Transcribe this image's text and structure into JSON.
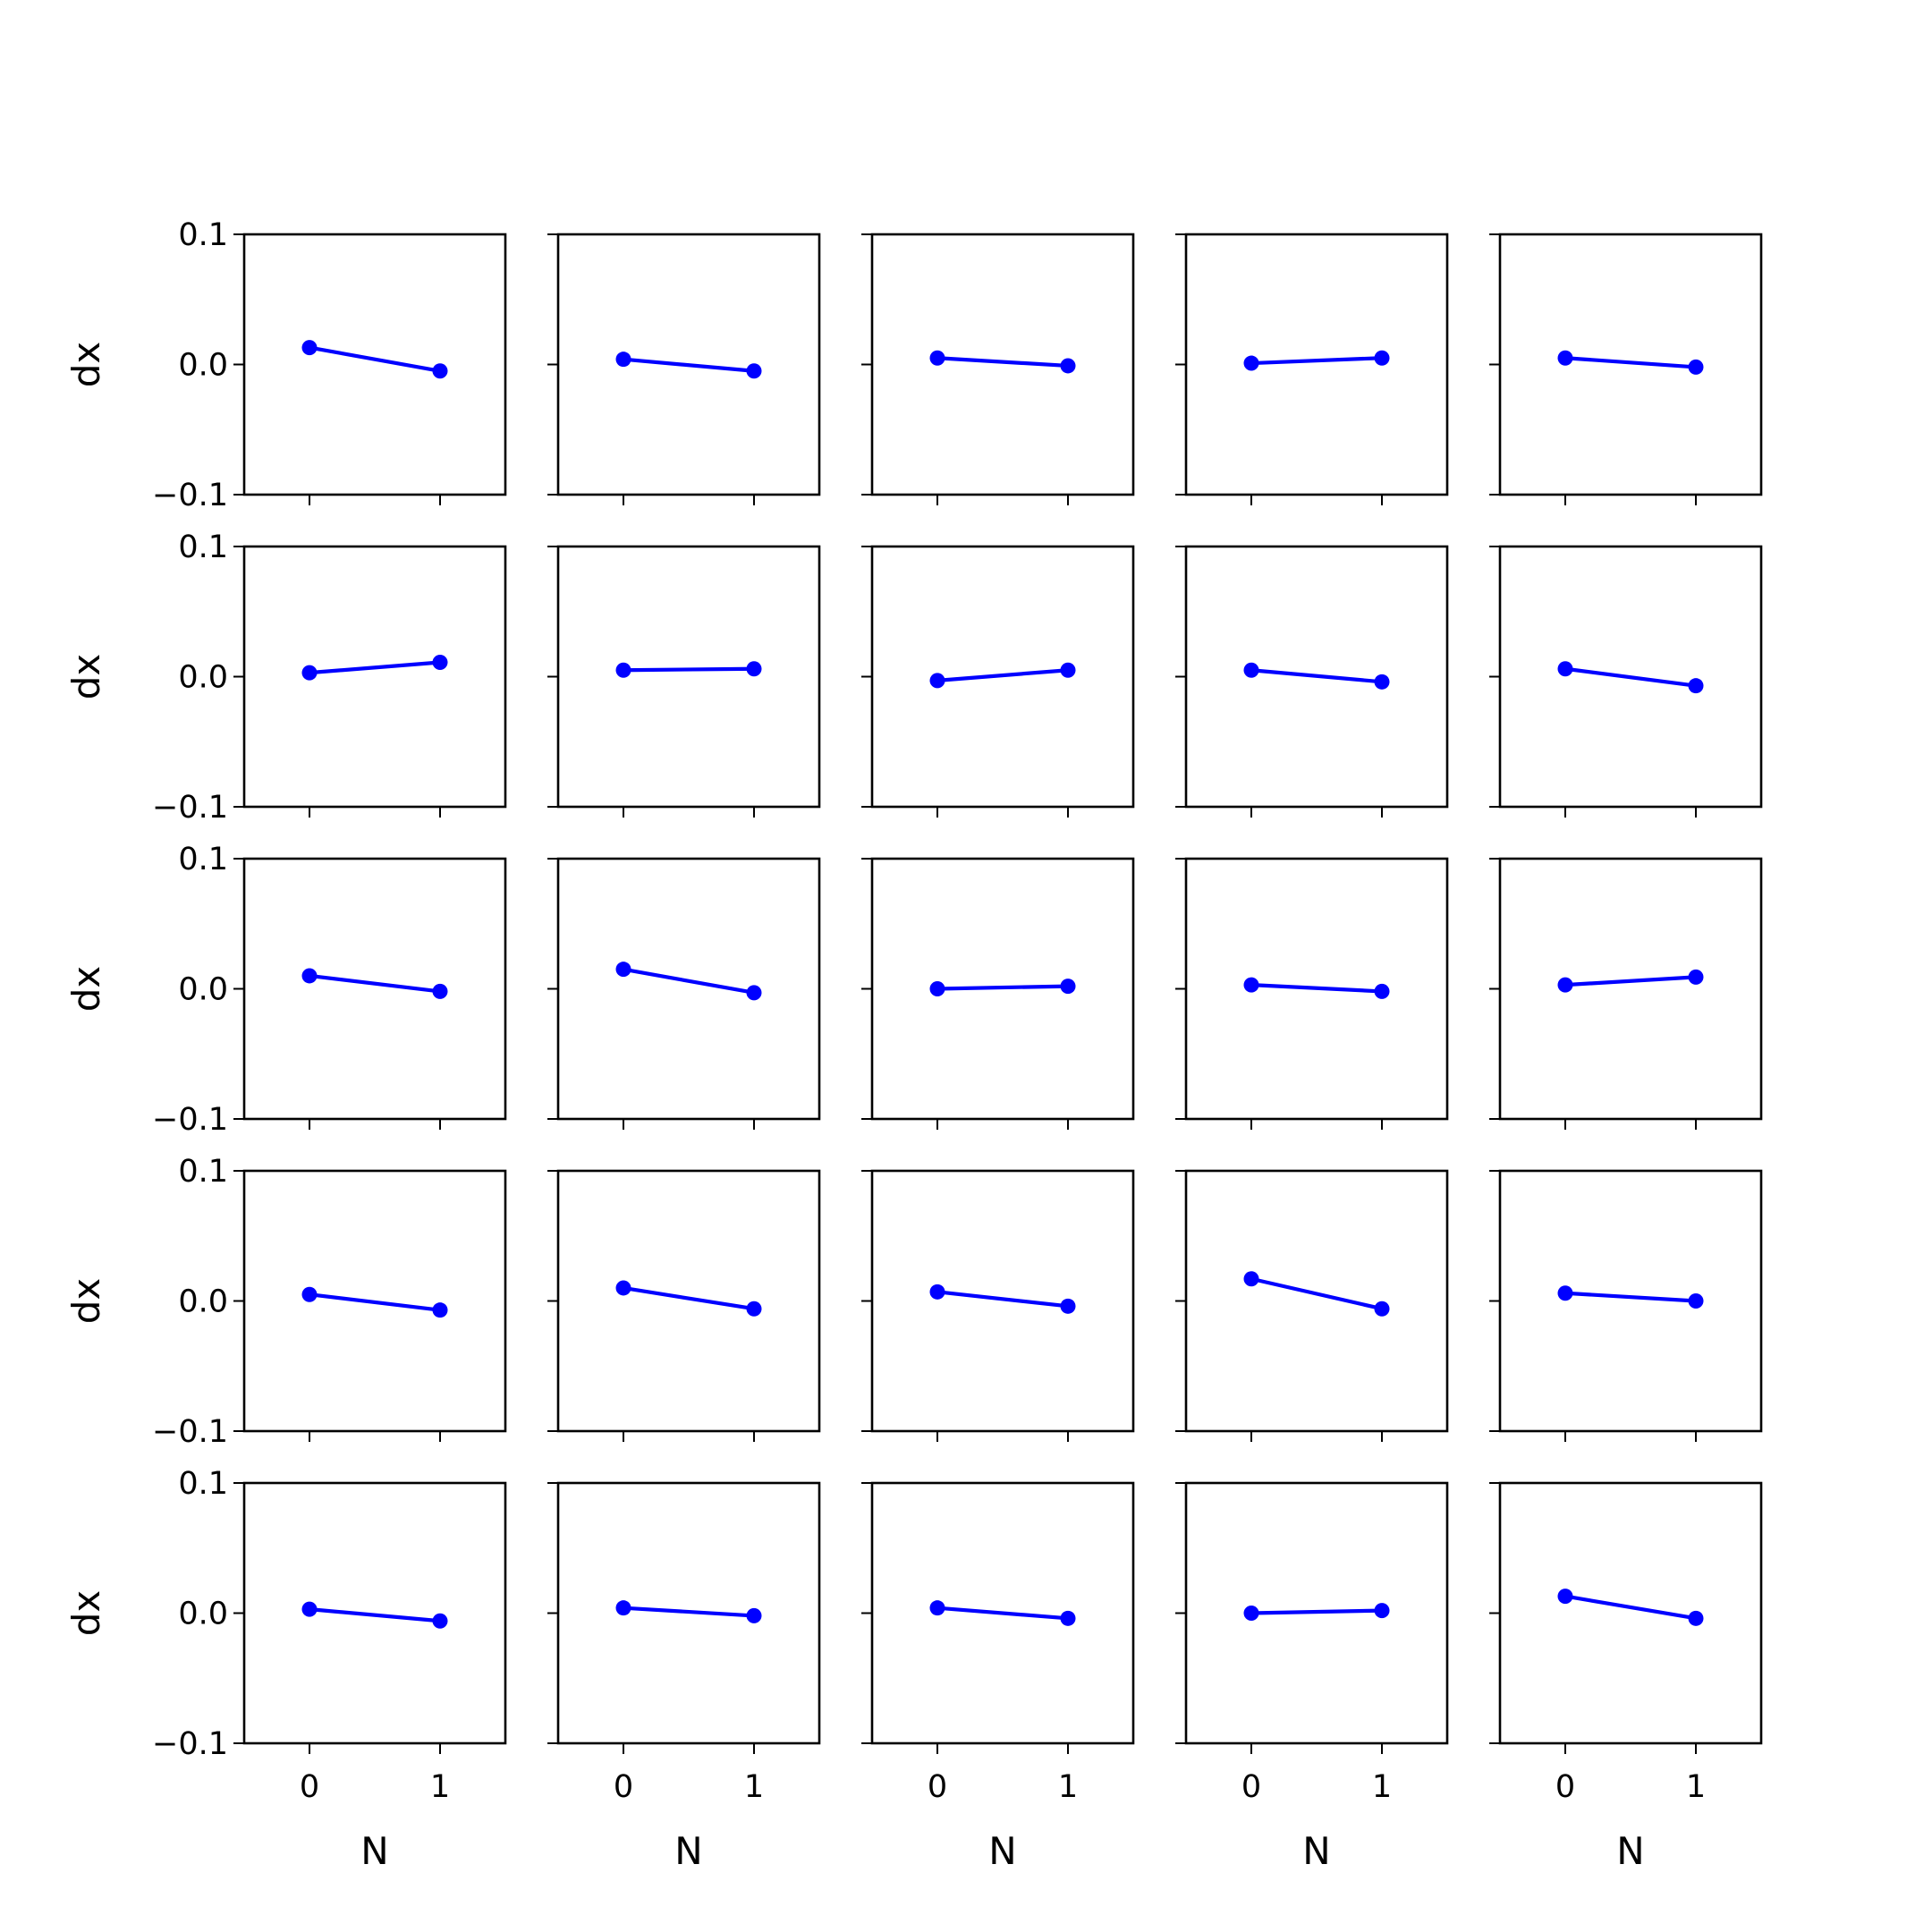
{
  "chart_data": {
    "type": "line",
    "layout": "5x5 grid of subplots",
    "xlabel": "N",
    "ylabel": "dx",
    "xticks": [
      "0",
      "1"
    ],
    "yticks": [
      "0.1",
      "0.0",
      "−0.1"
    ],
    "ylim": [
      -0.1,
      0.1
    ],
    "xlim": [
      -0.5,
      1.5
    ],
    "line_color": "#0000ff",
    "marker": "circle",
    "grid": false,
    "subplots": [
      {
        "x": [
          0,
          1
        ],
        "y": [
          0.013,
          -0.005
        ]
      },
      {
        "x": [
          0,
          1
        ],
        "y": [
          0.004,
          -0.005
        ]
      },
      {
        "x": [
          0,
          1
        ],
        "y": [
          0.005,
          -0.001
        ]
      },
      {
        "x": [
          0,
          1
        ],
        "y": [
          0.001,
          0.005
        ]
      },
      {
        "x": [
          0,
          1
        ],
        "y": [
          0.005,
          -0.002
        ]
      },
      {
        "x": [
          0,
          1
        ],
        "y": [
          0.003,
          0.011
        ]
      },
      {
        "x": [
          0,
          1
        ],
        "y": [
          0.005,
          0.006
        ]
      },
      {
        "x": [
          0,
          1
        ],
        "y": [
          -0.003,
          0.005
        ]
      },
      {
        "x": [
          0,
          1
        ],
        "y": [
          0.005,
          -0.004
        ]
      },
      {
        "x": [
          0,
          1
        ],
        "y": [
          0.006,
          -0.007
        ]
      },
      {
        "x": [
          0,
          1
        ],
        "y": [
          0.01,
          -0.002
        ]
      },
      {
        "x": [
          0,
          1
        ],
        "y": [
          0.015,
          -0.003
        ]
      },
      {
        "x": [
          0,
          1
        ],
        "y": [
          0.0,
          0.002
        ]
      },
      {
        "x": [
          0,
          1
        ],
        "y": [
          0.003,
          -0.002
        ]
      },
      {
        "x": [
          0,
          1
        ],
        "y": [
          0.003,
          0.009
        ]
      },
      {
        "x": [
          0,
          1
        ],
        "y": [
          0.005,
          -0.007
        ]
      },
      {
        "x": [
          0,
          1
        ],
        "y": [
          0.01,
          -0.006
        ]
      },
      {
        "x": [
          0,
          1
        ],
        "y": [
          0.007,
          -0.004
        ]
      },
      {
        "x": [
          0,
          1
        ],
        "y": [
          0.017,
          -0.006
        ]
      },
      {
        "x": [
          0,
          1
        ],
        "y": [
          0.006,
          0.0
        ]
      },
      {
        "x": [
          0,
          1
        ],
        "y": [
          0.003,
          -0.006
        ]
      },
      {
        "x": [
          0,
          1
        ],
        "y": [
          0.004,
          -0.002
        ]
      },
      {
        "x": [
          0,
          1
        ],
        "y": [
          0.004,
          -0.004
        ]
      },
      {
        "x": [
          0,
          1
        ],
        "y": [
          0.0,
          0.002
        ]
      },
      {
        "x": [
          0,
          1
        ],
        "y": [
          0.013,
          -0.004
        ]
      }
    ]
  }
}
